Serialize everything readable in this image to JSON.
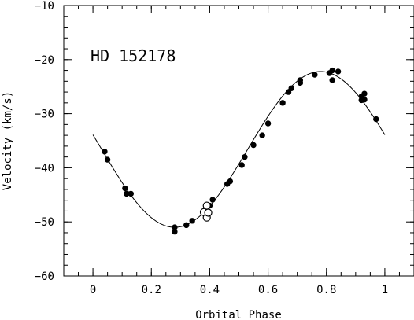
{
  "chart_data": {
    "type": "scatter",
    "title": "",
    "annotation": "HD 152178",
    "xlabel": "Orbital Phase",
    "ylabel": "Velocity (km/s)",
    "xlim": [
      -0.1,
      1.1
    ],
    "ylim": [
      -60,
      -10
    ],
    "xticks": [
      {
        "v": 0,
        "label": "0"
      },
      {
        "v": 0.2,
        "label": "0.2"
      },
      {
        "v": 0.4,
        "label": "0.4"
      },
      {
        "v": 0.6,
        "label": "0.6"
      },
      {
        "v": 0.8,
        "label": "0.8"
      },
      {
        "v": 1,
        "label": "1"
      }
    ],
    "yticks": [
      {
        "v": -10,
        "label": "−10"
      },
      {
        "v": -20,
        "label": "−20"
      },
      {
        "v": -30,
        "label": "−30"
      },
      {
        "v": -40,
        "label": "−40"
      },
      {
        "v": -50,
        "label": "−50"
      },
      {
        "v": -60,
        "label": "−60"
      }
    ],
    "x_minor_step": 0.05,
    "y_minor_step": 2,
    "orbit_fit": {
      "systemic_velocity": -36.6,
      "semi_amplitude": 14.4,
      "phase_of_minimum": 0.28,
      "color": "#000000"
    },
    "series": [
      {
        "marker": "filled-circle",
        "color": "#000000",
        "points": [
          [
            0.04,
            -37.0
          ],
          [
            0.05,
            -38.5
          ],
          [
            0.11,
            -43.8
          ],
          [
            0.115,
            -44.8
          ],
          [
            0.13,
            -44.8
          ],
          [
            0.28,
            -51.8
          ],
          [
            0.28,
            -51.0
          ],
          [
            0.32,
            -50.6
          ],
          [
            0.34,
            -49.8
          ],
          [
            0.4,
            -47.0
          ],
          [
            0.41,
            -45.9
          ],
          [
            0.46,
            -43.0
          ],
          [
            0.47,
            -42.5
          ],
          [
            0.51,
            -39.5
          ],
          [
            0.52,
            -38.0
          ],
          [
            0.55,
            -35.8
          ],
          [
            0.58,
            -34.0
          ],
          [
            0.6,
            -31.8
          ],
          [
            0.65,
            -28.0
          ],
          [
            0.67,
            -26.0
          ],
          [
            0.68,
            -25.3
          ],
          [
            0.71,
            -23.8
          ],
          [
            0.71,
            -24.3
          ],
          [
            0.76,
            -22.8
          ],
          [
            0.81,
            -22.5
          ],
          [
            0.82,
            -22.0
          ],
          [
            0.84,
            -22.2
          ],
          [
            0.82,
            -23.8
          ],
          [
            0.92,
            -26.8
          ],
          [
            0.92,
            -27.5
          ],
          [
            0.93,
            -27.4
          ],
          [
            0.93,
            -26.3
          ],
          [
            0.97,
            -31.0
          ]
        ]
      },
      {
        "marker": "open-circle",
        "color": "#000000",
        "points": [
          [
            0.39,
            -47.0
          ],
          [
            0.38,
            -48.2
          ],
          [
            0.39,
            -49.2
          ],
          [
            0.395,
            -48.3
          ]
        ]
      }
    ]
  }
}
